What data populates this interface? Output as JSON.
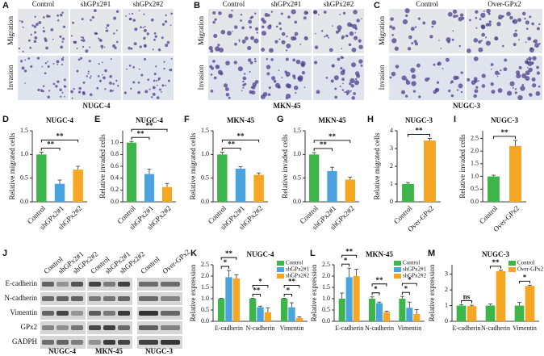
{
  "micrographs": [
    {
      "panel": "A",
      "columns": [
        "Control",
        "shGPx2#1",
        "shGPx2#2"
      ],
      "rows": [
        "Migration",
        "Invasion"
      ],
      "cell_line": "NUGC-4"
    },
    {
      "panel": "B",
      "columns": [
        "Control",
        "shGPx2#1",
        "shGPx2#2"
      ],
      "rows": [
        "Migration",
        "Invasion"
      ],
      "cell_line": "MKN-45"
    },
    {
      "panel": "C",
      "columns": [
        "Control",
        "Over-GPx2"
      ],
      "rows": [
        "Migration",
        "Invasion"
      ],
      "cell_line": "NUGC-3"
    }
  ],
  "western_blot": {
    "panel": "J",
    "proteins": [
      "E-cadherin",
      "N-cadherin",
      "Vimentin",
      "GPx2",
      "GADPH"
    ],
    "groups": [
      {
        "cell_line": "NUGC-4",
        "lanes": [
          "Control",
          "shGPx2#1",
          "shGPx2#2"
        ]
      },
      {
        "cell_line": "MKN-45",
        "lanes": [
          "Control",
          "shGPx2#1",
          "shGPx2#2"
        ]
      },
      {
        "cell_line": "NUGC-3",
        "lanes": [
          "Control",
          "Over-GPx2"
        ]
      }
    ]
  },
  "chart_data": [
    {
      "type": "bar",
      "panel": "D",
      "title": "NUGC-4",
      "y_label": "Relative migrated cells",
      "categories": [
        "Control",
        "shGPx2#1",
        "shGPx2#2"
      ],
      "values": [
        1.0,
        0.38,
        0.68
      ],
      "errors": [
        0.05,
        0.08,
        0.07
      ],
      "colors": [
        "#3db54a",
        "#4aa3df",
        "#f5a623"
      ],
      "ylim": [
        0,
        1.5
      ],
      "yticks": [
        {
          "value": 0,
          "label": "0.0"
        },
        0.5,
        {
          "value": 1,
          "label": "1.0"
        },
        1.5
      ],
      "annotations": [
        {
          "label": "**",
          "pair": [
            0,
            1
          ]
        },
        {
          "label": "**",
          "pair": [
            0,
            2
          ]
        }
      ]
    },
    {
      "type": "bar",
      "panel": "E",
      "title": "NUGC-4",
      "y_label": "Relative invaded cells",
      "categories": [
        "Control",
        "shGPx2#1",
        "shGPx2#2"
      ],
      "values": [
        1.0,
        0.47,
        0.25
      ],
      "errors": [
        0.02,
        0.08,
        0.06
      ],
      "colors": [
        "#3db54a",
        "#4aa3df",
        "#f5a623"
      ],
      "ylim": [
        0,
        1.2
      ],
      "yticks": [
        {
          "value": 0,
          "label": "0.0"
        },
        0.2,
        0.4,
        0.6,
        0.8,
        {
          "value": 1,
          "label": "1.0"
        }
      ],
      "annotations": [
        {
          "label": "**",
          "pair": [
            0,
            1
          ]
        },
        {
          "label": "**",
          "pair": [
            0,
            2
          ]
        }
      ]
    },
    {
      "type": "bar",
      "panel": "F",
      "title": "MKN-45",
      "y_label": "Relative migrated cells",
      "categories": [
        "Control",
        "shGPx2#1",
        "shGPx2#2"
      ],
      "values": [
        1.0,
        0.7,
        0.57
      ],
      "errors": [
        0.05,
        0.04,
        0.04
      ],
      "colors": [
        "#3db54a",
        "#4aa3df",
        "#f5a623"
      ],
      "ylim": [
        0,
        1.5
      ],
      "yticks": [
        {
          "value": 0,
          "label": "0.0"
        },
        0.5,
        {
          "value": 1,
          "label": "1.0"
        },
        1.5
      ],
      "annotations": [
        {
          "label": "**",
          "pair": [
            0,
            1
          ]
        },
        {
          "label": "**",
          "pair": [
            0,
            2
          ]
        }
      ]
    },
    {
      "type": "bar",
      "panel": "G",
      "title": "MKN-45",
      "y_label": "Relative invaded cells",
      "categories": [
        "Control",
        "shGPx2#1",
        "shGPx2#2"
      ],
      "values": [
        1.0,
        0.65,
        0.47
      ],
      "errors": [
        0.04,
        0.08,
        0.05
      ],
      "colors": [
        "#3db54a",
        "#4aa3df",
        "#f5a623"
      ],
      "ylim": [
        0,
        1.5
      ],
      "yticks": [
        {
          "value": 0,
          "label": "0.0"
        },
        0.5,
        {
          "value": 1,
          "label": "1.0"
        },
        1.5
      ],
      "annotations": [
        {
          "label": "**",
          "pair": [
            0,
            1
          ]
        },
        {
          "label": "**",
          "pair": [
            0,
            2
          ]
        }
      ]
    },
    {
      "type": "bar",
      "panel": "H",
      "title": "NUGC-3",
      "y_label": "Relative migrated cells",
      "categories": [
        "Control",
        "Over-GPx2"
      ],
      "values": [
        1.0,
        3.45
      ],
      "errors": [
        0.08,
        0.12
      ],
      "colors": [
        "#3db54a",
        "#f5a623"
      ],
      "ylim": [
        0,
        4
      ],
      "yticks": [
        0,
        1,
        2,
        3,
        4
      ],
      "annotations": [
        {
          "label": "**",
          "pair": [
            0,
            1
          ]
        }
      ]
    },
    {
      "type": "bar",
      "panel": "I",
      "title": "NUGC-3",
      "y_label": "Relative invaded cells",
      "categories": [
        "Control",
        "Over-GPx2"
      ],
      "values": [
        1.0,
        2.2
      ],
      "errors": [
        0.05,
        0.22
      ],
      "colors": [
        "#3db54a",
        "#f5a623"
      ],
      "ylim": [
        0,
        2.8
      ],
      "yticks": [
        {
          "value": 0,
          "label": "0.0"
        },
        0.5,
        {
          "value": 1,
          "label": "1.0"
        },
        1.5,
        {
          "value": 2,
          "label": "2.0"
        },
        2.5
      ],
      "annotations": [
        {
          "label": "**",
          "pair": [
            0,
            1
          ]
        }
      ]
    },
    {
      "type": "grouped_bar",
      "panel": "K",
      "title": "NUGC-4",
      "y_label": "Relative expression",
      "categories": [
        "E-cadherin",
        "N-cadherin",
        "Vimentin"
      ],
      "series": [
        {
          "name": "Control",
          "color": "#3db54a",
          "values": [
            1.0,
            1.0,
            1.0
          ],
          "errors": [
            0.02,
            0.02,
            0.02
          ]
        },
        {
          "name": "shGPx2#1",
          "color": "#4aa3df",
          "values": [
            1.95,
            0.62,
            0.62
          ],
          "errors": [
            0.3,
            0.05,
            0.2
          ]
        },
        {
          "name": "shGPx2#2",
          "color": "#f5a623",
          "values": [
            1.9,
            0.4,
            0.15
          ],
          "errors": [
            0.15,
            0.2,
            0.05
          ]
        }
      ],
      "ylim": [
        0,
        2.5
      ],
      "yticks": [
        {
          "value": 0,
          "label": "0.0"
        },
        0.5,
        {
          "value": 1,
          "label": "1.0"
        },
        1.5,
        {
          "value": 2,
          "label": "2.0"
        },
        2.5
      ],
      "annotations": [
        {
          "label": "*",
          "category": 0,
          "pair": [
            0,
            1
          ]
        },
        {
          "label": "**",
          "category": 0,
          "pair": [
            0,
            2
          ]
        },
        {
          "label": "**",
          "category": 1,
          "pair": [
            0,
            1
          ]
        },
        {
          "label": "*",
          "category": 1,
          "pair": [
            0,
            2
          ]
        },
        {
          "label": "*",
          "category": 2,
          "pair": [
            0,
            1
          ]
        },
        {
          "label": "**",
          "category": 2,
          "pair": [
            0,
            2
          ]
        }
      ]
    },
    {
      "type": "grouped_bar",
      "panel": "L",
      "title": "MKN-45",
      "y_label": "Relative expression",
      "categories": [
        "E-cadherin",
        "N-cadherin",
        "Vimentin"
      ],
      "series": [
        {
          "name": "Control",
          "color": "#3db54a",
          "values": [
            1.0,
            1.0,
            1.0
          ],
          "errors": [
            0.25,
            0.08,
            0.1
          ]
        },
        {
          "name": "shGPx2#1",
          "color": "#4aa3df",
          "values": [
            1.95,
            0.8,
            0.6
          ],
          "errors": [
            0.4,
            0.05,
            0.25
          ]
        },
        {
          "name": "shGPx2#2",
          "color": "#f5a623",
          "values": [
            2.0,
            0.4,
            0.32
          ],
          "errors": [
            0.3,
            0.05,
            0.2
          ]
        }
      ],
      "ylim": [
        0,
        2.5
      ],
      "yticks": [
        {
          "value": 0,
          "label": "0.0"
        },
        0.5,
        {
          "value": 1,
          "label": "1.0"
        },
        1.5,
        {
          "value": 2,
          "label": "2.0"
        },
        2.5
      ],
      "annotations": [
        {
          "label": "*",
          "category": 0,
          "pair": [
            0,
            1
          ]
        },
        {
          "label": "**",
          "category": 0,
          "pair": [
            0,
            2
          ]
        },
        {
          "label": "*",
          "category": 1,
          "pair": [
            0,
            1
          ]
        },
        {
          "label": "**",
          "category": 1,
          "pair": [
            0,
            2
          ]
        },
        {
          "label": "*",
          "category": 2,
          "pair": [
            0,
            1
          ]
        },
        {
          "label": "*",
          "category": 2,
          "pair": [
            0,
            2
          ]
        }
      ]
    },
    {
      "type": "grouped_bar",
      "panel": "M",
      "title": "NUGC-3",
      "y_label": "Relative expression",
      "categories": [
        "E-cadherin",
        "N-cadherin",
        "Vimentin"
      ],
      "series": [
        {
          "name": "Control",
          "color": "#3db54a",
          "values": [
            1.0,
            1.0,
            1.0
          ],
          "errors": [
            0.05,
            0.1,
            0.2
          ]
        },
        {
          "name": "Over-GPx2",
          "color": "#f5a623",
          "values": [
            0.97,
            3.2,
            2.25
          ],
          "errors": [
            0.05,
            0.05,
            0.05
          ]
        }
      ],
      "ylim": [
        0,
        3.6
      ],
      "yticks": [
        0,
        1,
        2,
        3
      ],
      "annotations": [
        {
          "label": "ns",
          "category": 0,
          "pair": [
            0,
            1
          ]
        },
        {
          "label": "**",
          "category": 1,
          "pair": [
            0,
            1
          ]
        },
        {
          "label": "*",
          "category": 2,
          "pair": [
            0,
            1
          ]
        }
      ]
    }
  ]
}
